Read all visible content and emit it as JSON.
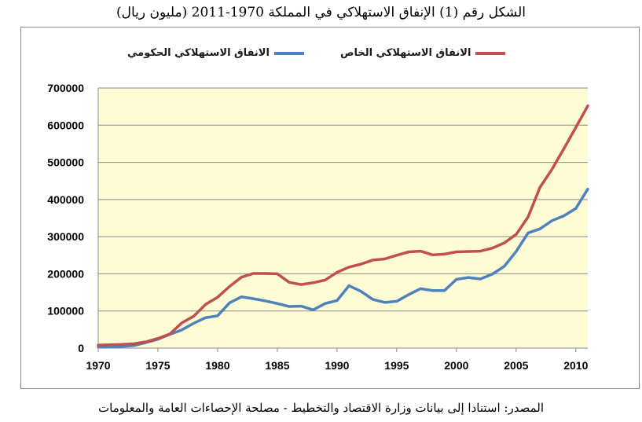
{
  "title": "الشكل رقم (1) الإنفاق الاستهلاكي في المملكة 1970-2011 (مليون ريال)",
  "source": "المصدر: استنادا إلى بيانات وزارة الاقتصاد والتخطيط - مصلحة الإحصاءات العامة والمعلومات",
  "chart_data": {
    "type": "line",
    "title": "الشكل رقم (1) الإنفاق الاستهلاكي في المملكة 1970-2011 (مليون ريال)",
    "xlabel": "",
    "ylabel": "",
    "xlim": [
      1970,
      2011
    ],
    "ylim": [
      0,
      700000
    ],
    "grid": true,
    "legend_position": "top",
    "plot_background": "#fdfcd5",
    "x_ticks": [
      "1970",
      "1975",
      "1980",
      "1985",
      "1990",
      "1995",
      "2000",
      "2005",
      "2010"
    ],
    "y_ticks": [
      "0",
      "100000",
      "200000",
      "300000",
      "400000",
      "500000",
      "600000",
      "700000"
    ],
    "x": [
      1970,
      1971,
      1972,
      1973,
      1974,
      1975,
      1976,
      1977,
      1978,
      1979,
      1980,
      1981,
      1982,
      1983,
      1984,
      1985,
      1986,
      1987,
      1988,
      1989,
      1990,
      1991,
      1992,
      1993,
      1994,
      1995,
      1996,
      1997,
      1998,
      1999,
      2000,
      2001,
      2002,
      2003,
      2004,
      2005,
      2006,
      2007,
      2008,
      2009,
      2010,
      2011
    ],
    "series": [
      {
        "name": "الانفاق الاستهلاكي الخاص",
        "color": "#c0504d",
        "values": [
          8000,
          9000,
          10000,
          12000,
          17000,
          26000,
          38000,
          68000,
          86000,
          118000,
          137000,
          166000,
          191000,
          201000,
          201000,
          200000,
          177000,
          171000,
          176000,
          183000,
          204000,
          218000,
          226000,
          237000,
          240000,
          250000,
          259000,
          261000,
          251000,
          253000,
          259000,
          260000,
          261000,
          269000,
          283000,
          306000,
          353000,
          433000,
          481000,
          537000,
          594000,
          652000
        ]
      },
      {
        "name": "الانفاق الاستهلاكي الحكومي",
        "color": "#4f81bd",
        "values": [
          3000,
          3500,
          4500,
          7000,
          15000,
          24000,
          37000,
          49000,
          67000,
          82000,
          87000,
          122000,
          138000,
          133000,
          127000,
          120000,
          112000,
          113000,
          103000,
          120000,
          128000,
          168000,
          153000,
          131000,
          123000,
          126000,
          144000,
          160000,
          155000,
          155000,
          185000,
          190000,
          186000,
          199000,
          220000,
          260000,
          310000,
          321000,
          343000,
          356000,
          376000,
          428000
        ]
      }
    ]
  }
}
